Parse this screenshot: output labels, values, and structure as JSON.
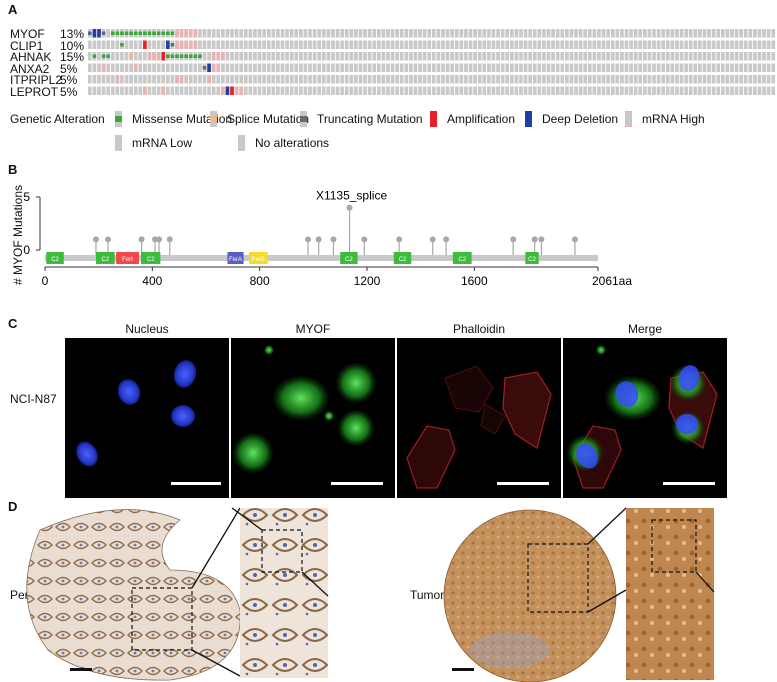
{
  "panels": {
    "a": "A",
    "b": "B",
    "c": "C",
    "d": "D"
  },
  "oncoprint": {
    "genes": [
      {
        "name": "MYOF",
        "pct": "13%"
      },
      {
        "name": "CLIP1",
        "pct": "10%"
      },
      {
        "name": "AHNAK",
        "pct": "15%"
      },
      {
        "name": "ANXA2",
        "pct": "5%"
      },
      {
        "name": "ITPRIPL2",
        "pct": "5%"
      },
      {
        "name": "LEPROT",
        "pct": "5%"
      }
    ],
    "legend_title": "Genetic Alteration",
    "legend": [
      {
        "label": "Missense Mutation",
        "color": "#3aa53a"
      },
      {
        "label": "Splice Mutation",
        "color": "#f2b880"
      },
      {
        "label": "Truncating Mutation",
        "color": "#5f6c73"
      },
      {
        "label": "Amplification",
        "color": "#e8202a"
      },
      {
        "label": "Deep Deletion",
        "color": "#1f3fa6"
      },
      {
        "label": "mRNA High",
        "color": "#e9b3b3"
      },
      {
        "label": "mRNA Low",
        "color": "#b7cde8"
      },
      {
        "label": "No alterations",
        "color": "#c8c8c8"
      }
    ],
    "colors": {
      "none": "#c9c9c9",
      "missense": "#3aa53a",
      "splice": "#f2b880",
      "trunc": "#5f6c73",
      "amp": "#e8202a",
      "del": "#1f3fa6",
      "high": "#e9b3b3",
      "low": "#b7cde8"
    }
  },
  "lollipop": {
    "ylabel": "# MYOF Mutations",
    "yticks": [
      "0",
      "5"
    ],
    "xticks": [
      "0",
      "400",
      "800",
      "1200",
      "1600",
      "2061aa"
    ],
    "annotation": "X1135_splice",
    "domains": [
      {
        "label": "C2",
        "start": 5,
        "end": 70,
        "color": "#3dbb3d"
      },
      {
        "label": "C2",
        "start": 190,
        "end": 260,
        "color": "#3dbb3d"
      },
      {
        "label": "FerI",
        "start": 265,
        "end": 350,
        "color": "#f2474b"
      },
      {
        "label": "C2",
        "start": 358,
        "end": 430,
        "color": "#3dbb3d"
      },
      {
        "label": "FerA",
        "start": 680,
        "end": 740,
        "color": "#5b5fbf"
      },
      {
        "label": "FerB",
        "start": 760,
        "end": 830,
        "color": "#f5dc2a"
      },
      {
        "label": "C2",
        "start": 1100,
        "end": 1165,
        "color": "#3dbb3d"
      },
      {
        "label": "C2",
        "start": 1300,
        "end": 1365,
        "color": "#3dbb3d"
      },
      {
        "label": "C2",
        "start": 1520,
        "end": 1590,
        "color": "#3dbb3d"
      },
      {
        "label": "C2",
        "start": 1790,
        "end": 1840,
        "color": "#3dbb3d"
      }
    ],
    "mutations": [
      {
        "pos": 190,
        "count": 1
      },
      {
        "pos": 235,
        "count": 1
      },
      {
        "pos": 360,
        "count": 1
      },
      {
        "pos": 410,
        "count": 1
      },
      {
        "pos": 425,
        "count": 1
      },
      {
        "pos": 465,
        "count": 1
      },
      {
        "pos": 980,
        "count": 1
      },
      {
        "pos": 1020,
        "count": 1
      },
      {
        "pos": 1075,
        "count": 1
      },
      {
        "pos": 1135,
        "count": 4
      },
      {
        "pos": 1190,
        "count": 1
      },
      {
        "pos": 1320,
        "count": 1
      },
      {
        "pos": 1445,
        "count": 1
      },
      {
        "pos": 1495,
        "count": 1
      },
      {
        "pos": 1745,
        "count": 1
      },
      {
        "pos": 1825,
        "count": 1
      },
      {
        "pos": 1850,
        "count": 1
      },
      {
        "pos": 1975,
        "count": 1
      }
    ]
  },
  "micro": {
    "cell_line": "NCI-N87",
    "titles": [
      "Nucleus",
      "MYOF",
      "Phalloidin",
      "Merge"
    ]
  },
  "ihc": {
    "left_label": "Peritumor",
    "right_label": "Tumor"
  }
}
